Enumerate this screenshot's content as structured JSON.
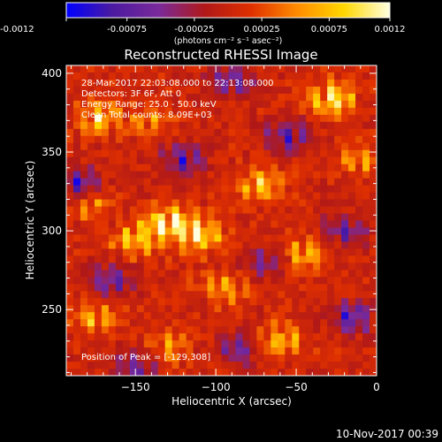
{
  "colorbar": {
    "ticks": [
      "-0.0012",
      "-0.00075",
      "-0.00025",
      "0.00025",
      "0.00075",
      "0.0012"
    ],
    "unit_label": "(photons cm⁻² s⁻¹ asec⁻²)",
    "range": [
      -0.0012,
      0.0012
    ],
    "stops": [
      "#0000ff",
      "#4b1aa0",
      "#7a2a9a",
      "#b01818",
      "#e03000",
      "#ff8c00",
      "#ffd700",
      "#ffffe0"
    ]
  },
  "chart_data": {
    "type": "heatmap",
    "title": "Reconstructed RHESSI Image",
    "xlabel": "Heliocentric X (arcsec)",
    "ylabel": "Heliocentric Y (arcsec)",
    "xlim": [
      -193,
      0
    ],
    "ylim": [
      208,
      405
    ],
    "xticks": [
      -150,
      -100,
      -50,
      0
    ],
    "xtick_labels": [
      "−150",
      "−100",
      "−50",
      "0"
    ],
    "yticks": [
      250,
      300,
      350,
      400
    ],
    "ytick_labels": [
      "250",
      "300",
      "350",
      "400"
    ],
    "annotations": [
      "28-Mar-2017 22:03:08.000 to 22:13:08.000",
      "Detectors: 3F 6F, Att 0",
      "Energy Range: 25.0 - 50.0 keV",
      "Clean  Total counts: 8.09E+03"
    ],
    "peak_label": "Position of Peak = [-129,308]",
    "peak": [
      -129,
      308
    ],
    "grid": false,
    "hot_spots": [
      {
        "x": -129,
        "y": 305,
        "amp": 0.0012
      },
      {
        "x": -110,
        "y": 297,
        "amp": 0.001
      },
      {
        "x": -150,
        "y": 294,
        "amp": 0.0009
      },
      {
        "x": -28,
        "y": 384,
        "amp": 0.0011
      },
      {
        "x": -172,
        "y": 371,
        "amp": 0.0009
      },
      {
        "x": -44,
        "y": 286,
        "amp": 0.0008
      },
      {
        "x": -72,
        "y": 328,
        "amp": 0.0009
      },
      {
        "x": -95,
        "y": 263,
        "amp": 0.0007
      },
      {
        "x": -60,
        "y": 230,
        "amp": 0.0008
      },
      {
        "x": -175,
        "y": 245,
        "amp": 0.0007
      },
      {
        "x": -178,
        "y": 318,
        "amp": 0.0006
      },
      {
        "x": -10,
        "y": 345,
        "amp": 0.0006
      },
      {
        "x": -140,
        "y": 368,
        "amp": 0.0005
      },
      {
        "x": -130,
        "y": 225,
        "amp": 0.0006
      }
    ],
    "cold_spots": [
      {
        "x": -185,
        "y": 330,
        "amp": -0.001
      },
      {
        "x": -165,
        "y": 268,
        "amp": -0.0008
      },
      {
        "x": -120,
        "y": 345,
        "amp": -0.0009
      },
      {
        "x": -90,
        "y": 395,
        "amp": -0.0008
      },
      {
        "x": -55,
        "y": 360,
        "amp": -0.0009
      },
      {
        "x": -20,
        "y": 300,
        "amp": -0.0008
      },
      {
        "x": -15,
        "y": 245,
        "amp": -0.0009
      },
      {
        "x": -85,
        "y": 225,
        "amp": -0.0007
      },
      {
        "x": -70,
        "y": 280,
        "amp": -0.0006
      },
      {
        "x": -150,
        "y": 215,
        "amp": -0.0008
      }
    ]
  },
  "footer": {
    "timestamp": "10-Nov-2017 00:39"
  }
}
